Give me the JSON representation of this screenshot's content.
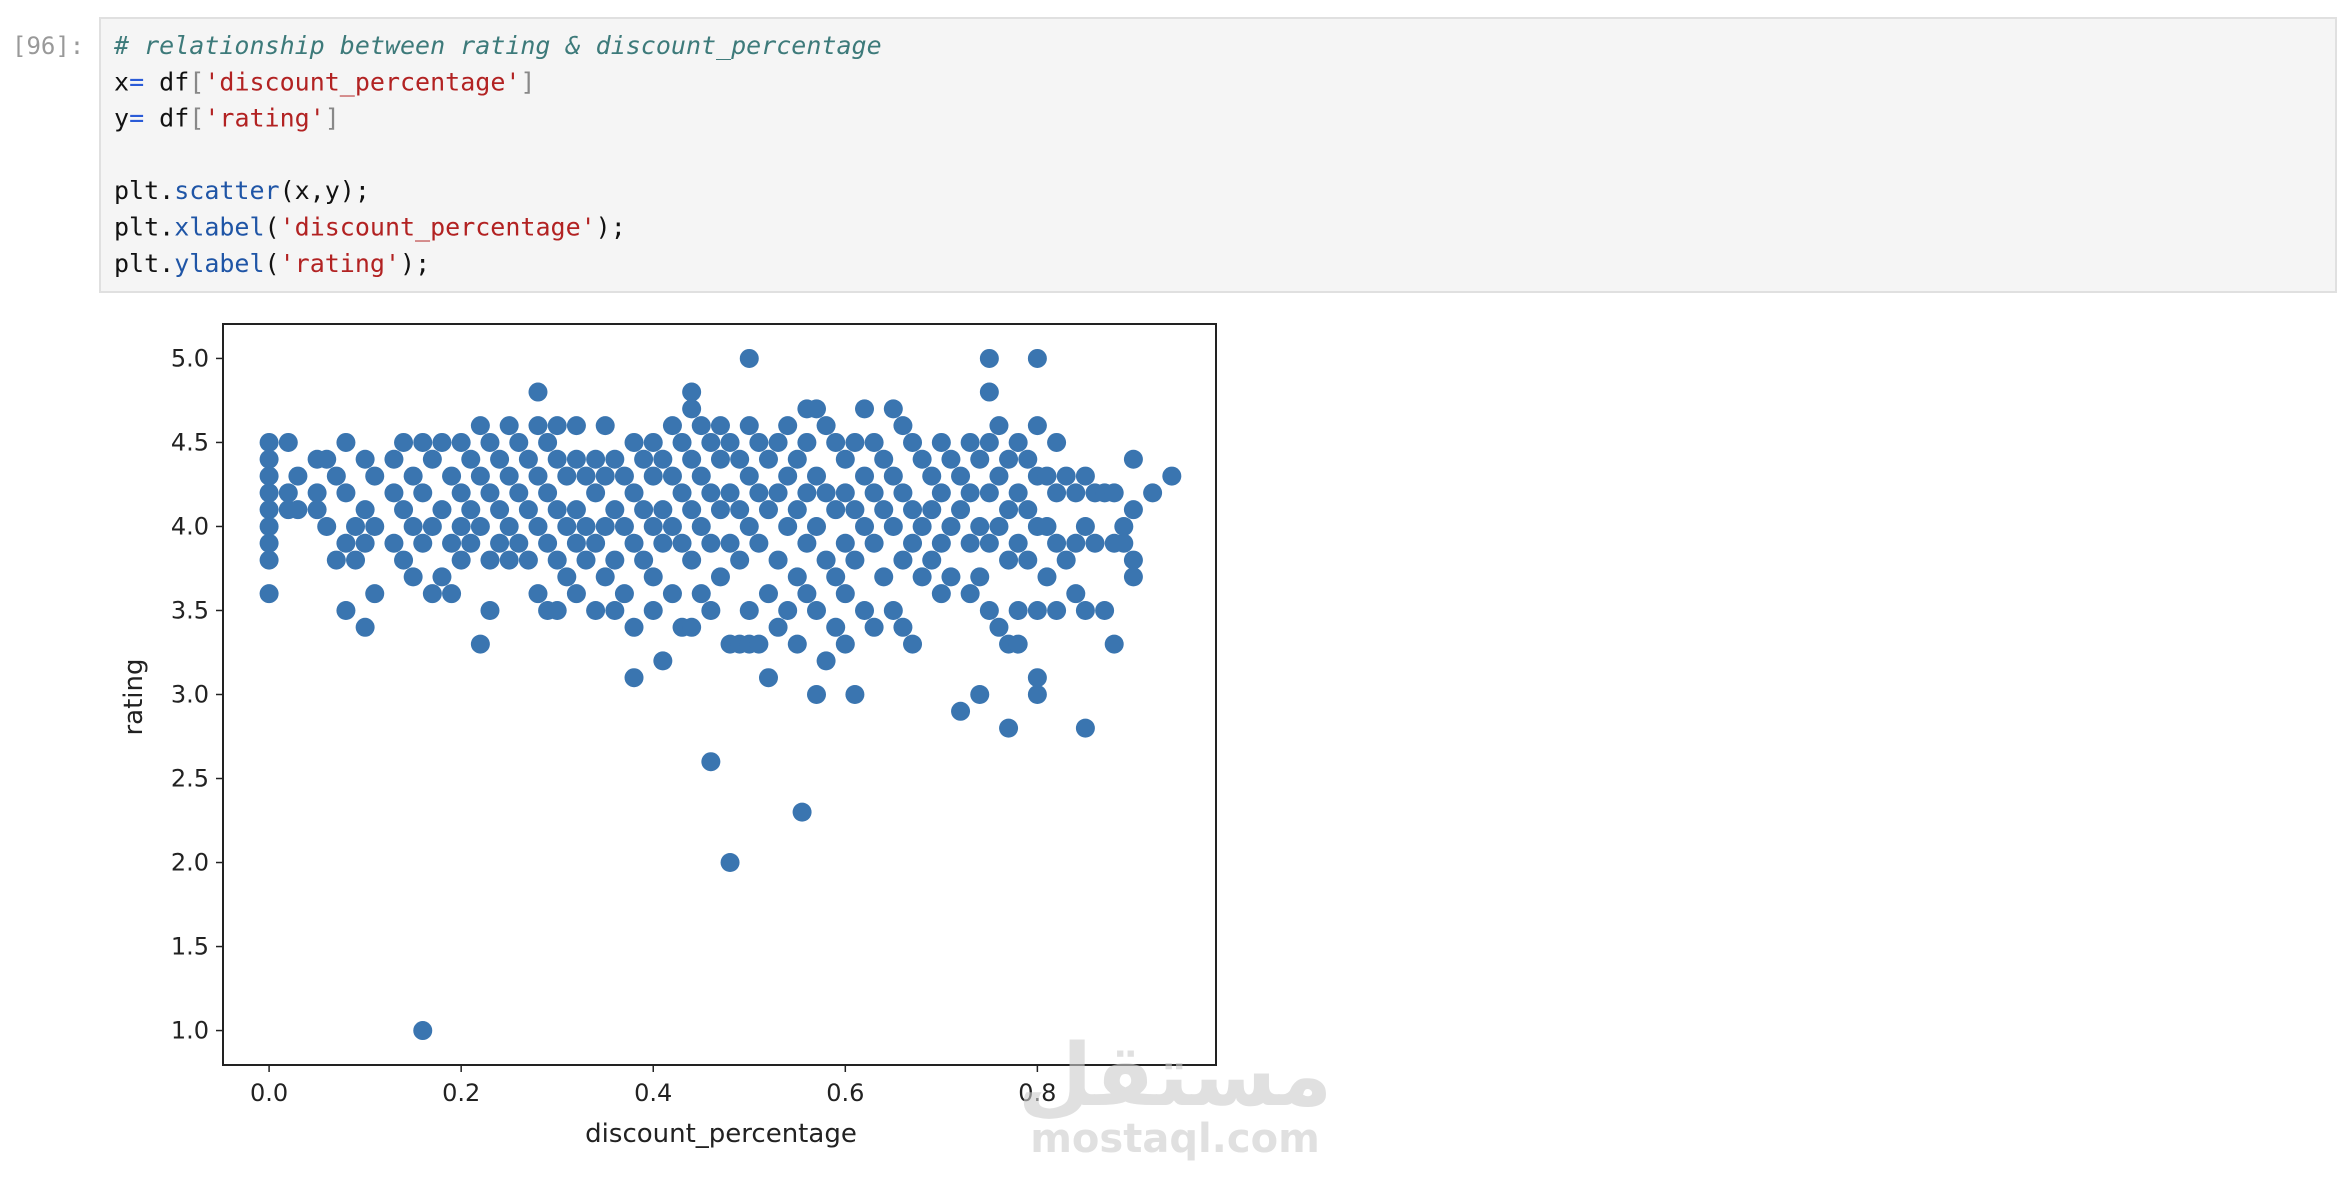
{
  "cell": {
    "prompt": "[96]:",
    "code": [
      [
        {
          "text": "# relationship between rating & discount_percentage",
          "style": "comment"
        }
      ],
      [
        {
          "text": "x",
          "style": "plain"
        },
        {
          "text": "=",
          "style": "op"
        },
        {
          "text": " df",
          "style": "plain"
        },
        {
          "text": "[",
          "style": "punct"
        },
        {
          "text": "'discount_percentage'",
          "style": "string"
        },
        {
          "text": "]",
          "style": "punct"
        }
      ],
      [
        {
          "text": "y",
          "style": "plain"
        },
        {
          "text": "=",
          "style": "op"
        },
        {
          "text": " df",
          "style": "plain"
        },
        {
          "text": "[",
          "style": "punct"
        },
        {
          "text": "'rating'",
          "style": "string"
        },
        {
          "text": "]",
          "style": "punct"
        }
      ],
      [],
      [
        {
          "text": "plt.",
          "style": "plain"
        },
        {
          "text": "scatter",
          "style": "func"
        },
        {
          "text": "(x,y);",
          "style": "plain"
        }
      ],
      [
        {
          "text": "plt.",
          "style": "plain"
        },
        {
          "text": "xlabel",
          "style": "func"
        },
        {
          "text": "(",
          "style": "plain"
        },
        {
          "text": "'discount_percentage'",
          "style": "string"
        },
        {
          "text": ");",
          "style": "plain"
        }
      ],
      [
        {
          "text": "plt.",
          "style": "plain"
        },
        {
          "text": "ylabel",
          "style": "func"
        },
        {
          "text": "(",
          "style": "plain"
        },
        {
          "text": "'rating'",
          "style": "string"
        },
        {
          "text": ");",
          "style": "plain"
        }
      ]
    ]
  },
  "chart_data": {
    "type": "scatter",
    "xlabel": "discount_percentage",
    "ylabel": "rating",
    "color": "#3a75b0",
    "xlim": [
      -0.048,
      0.986
    ],
    "ylim": [
      0.795,
      5.205
    ],
    "xticks": [
      {
        "value": 0,
        "label": "0.0"
      },
      0.2,
      0.4,
      0.6,
      0.8
    ],
    "yticks": [
      {
        "value": 1,
        "label": "1.0"
      },
      1.5,
      {
        "value": 2,
        "label": "2.0"
      },
      2.5,
      {
        "value": 3,
        "label": "3.0"
      },
      3.5,
      {
        "value": 4,
        "label": "4.0"
      },
      4.5,
      {
        "value": 5,
        "label": "5.0"
      }
    ],
    "x": [
      0,
      0,
      0,
      0,
      0,
      0,
      0,
      0,
      0,
      0.02,
      0.02,
      0.02,
      0.03,
      0.03,
      0.05,
      0.05,
      0.05,
      0.06,
      0.06,
      0.07,
      0.07,
      0.08,
      0.08,
      0.08,
      0.08,
      0.09,
      0.09,
      0.1,
      0.1,
      0.1,
      0.1,
      0.11,
      0.11,
      0.11,
      0.13,
      0.13,
      0.13,
      0.14,
      0.14,
      0.14,
      0.15,
      0.15,
      0.15,
      0.16,
      0.16,
      0.16,
      0.16,
      0.17,
      0.17,
      0.17,
      0.18,
      0.18,
      0.18,
      0.19,
      0.19,
      0.19,
      0.2,
      0.2,
      0.2,
      0.2,
      0.21,
      0.21,
      0.21,
      0.22,
      0.22,
      0.22,
      0.22,
      0.23,
      0.23,
      0.23,
      0.23,
      0.24,
      0.24,
      0.24,
      0.25,
      0.25,
      0.25,
      0.25,
      0.26,
      0.26,
      0.26,
      0.27,
      0.27,
      0.27,
      0.28,
      0.28,
      0.28,
      0.28,
      0.28,
      0.29,
      0.29,
      0.29,
      0.29,
      0.3,
      0.3,
      0.3,
      0.3,
      0.3,
      0.31,
      0.31,
      0.31,
      0.32,
      0.32,
      0.32,
      0.32,
      0.32,
      0.33,
      0.33,
      0.33,
      0.34,
      0.34,
      0.34,
      0.34,
      0.35,
      0.35,
      0.35,
      0.35,
      0.36,
      0.36,
      0.36,
      0.36,
      0.37,
      0.37,
      0.37,
      0.38,
      0.38,
      0.38,
      0.38,
      0.38,
      0.39,
      0.39,
      0.39,
      0.4,
      0.4,
      0.4,
      0.4,
      0.4,
      0.41,
      0.41,
      0.41,
      0.41,
      0.42,
      0.42,
      0.42,
      0.42,
      0.43,
      0.43,
      0.43,
      0.43,
      0.44,
      0.44,
      0.44,
      0.44,
      0.44,
      0.44,
      0.45,
      0.45,
      0.45,
      0.45,
      0.46,
      0.46,
      0.46,
      0.46,
      0.46,
      0.47,
      0.47,
      0.47,
      0.47,
      0.48,
      0.48,
      0.48,
      0.48,
      0.48,
      0.49,
      0.49,
      0.49,
      0.49,
      0.5,
      0.5,
      0.5,
      0.5,
      0.5,
      0.5,
      0.51,
      0.51,
      0.51,
      0.51,
      0.52,
      0.52,
      0.52,
      0.52,
      0.53,
      0.53,
      0.53,
      0.53,
      0.54,
      0.54,
      0.54,
      0.54,
      0.55,
      0.55,
      0.55,
      0.55,
      0.555,
      0.56,
      0.56,
      0.56,
      0.56,
      0.56,
      0.57,
      0.57,
      0.57,
      0.57,
      0.57,
      0.58,
      0.58,
      0.58,
      0.58,
      0.59,
      0.59,
      0.59,
      0.59,
      0.6,
      0.6,
      0.6,
      0.6,
      0.6,
      0.61,
      0.61,
      0.61,
      0.61,
      0.62,
      0.62,
      0.62,
      0.62,
      0.63,
      0.63,
      0.63,
      0.63,
      0.64,
      0.64,
      0.64,
      0.65,
      0.65,
      0.65,
      0.65,
      0.66,
      0.66,
      0.66,
      0.66,
      0.67,
      0.67,
      0.67,
      0.67,
      0.68,
      0.68,
      0.68,
      0.69,
      0.69,
      0.69,
      0.7,
      0.7,
      0.7,
      0.7,
      0.71,
      0.71,
      0.71,
      0.72,
      0.72,
      0.72,
      0.73,
      0.73,
      0.73,
      0.73,
      0.74,
      0.74,
      0.74,
      0.74,
      0.75,
      0.75,
      0.75,
      0.75,
      0.75,
      0.75,
      0.76,
      0.76,
      0.76,
      0.76,
      0.77,
      0.77,
      0.77,
      0.77,
      0.77,
      0.78,
      0.78,
      0.78,
      0.78,
      0.78,
      0.79,
      0.79,
      0.79,
      0.8,
      0.8,
      0.8,
      0.8,
      0.8,
      0.8,
      0.8,
      0.81,
      0.81,
      0.81,
      0.82,
      0.82,
      0.82,
      0.82,
      0.83,
      0.83,
      0.84,
      0.84,
      0.84,
      0.85,
      0.85,
      0.85,
      0.85,
      0.86,
      0.86,
      0.87,
      0.87,
      0.88,
      0.88,
      0.88,
      0.89,
      0.89,
      0.9,
      0.9,
      0.9,
      0.9,
      0.92,
      0.94
    ],
    "values": [
      4.5,
      4.4,
      4.3,
      4.2,
      4.1,
      4.0,
      3.9,
      3.8,
      3.6,
      4.5,
      4.2,
      4.1,
      4.3,
      4.1,
      4.4,
      4.2,
      4.1,
      4.4,
      4.0,
      4.3,
      3.8,
      4.5,
      4.2,
      3.9,
      3.5,
      3.8,
      4.0,
      4.4,
      4.1,
      3.9,
      3.4,
      4.3,
      4.0,
      3.6,
      4.4,
      4.2,
      3.9,
      4.5,
      4.1,
      3.8,
      4.3,
      4.0,
      3.7,
      4.5,
      4.2,
      3.9,
      1.0,
      4.4,
      4.0,
      3.6,
      4.5,
      4.1,
      3.7,
      4.3,
      3.9,
      3.6,
      4.5,
      4.2,
      4.0,
      3.8,
      4.4,
      4.1,
      3.9,
      4.6,
      4.3,
      4.0,
      3.3,
      4.5,
      4.2,
      3.8,
      3.5,
      4.4,
      4.1,
      3.9,
      4.6,
      4.3,
      4.0,
      3.8,
      4.5,
      4.2,
      3.9,
      4.4,
      4.1,
      3.8,
      4.8,
      4.6,
      4.3,
      4.0,
      3.6,
      4.5,
      4.2,
      3.9,
      3.5,
      4.6,
      4.4,
      4.1,
      3.8,
      3.5,
      4.3,
      4.0,
      3.7,
      4.6,
      4.4,
      4.1,
      3.9,
      3.6,
      4.3,
      4.0,
      3.8,
      4.4,
      4.2,
      3.9,
      3.5,
      4.6,
      4.3,
      4.0,
      3.7,
      4.4,
      4.1,
      3.8,
      3.5,
      4.3,
      4.0,
      3.6,
      4.5,
      4.2,
      3.9,
      3.4,
      3.1,
      4.4,
      4.1,
      3.8,
      4.5,
      4.3,
      4.0,
      3.7,
      3.5,
      4.4,
      4.1,
      3.9,
      3.2,
      4.6,
      4.3,
      4.0,
      3.6,
      4.5,
      4.2,
      3.9,
      3.4,
      4.8,
      4.7,
      4.4,
      4.1,
      3.8,
      3.4,
      4.6,
      4.3,
      4.0,
      3.6,
      4.5,
      4.2,
      3.9,
      3.5,
      2.6,
      4.6,
      4.4,
      4.1,
      3.7,
      4.5,
      4.2,
      3.9,
      3.3,
      2.0,
      4.4,
      4.1,
      3.8,
      3.3,
      5.0,
      4.6,
      4.3,
      4.0,
      3.5,
      3.3,
      4.5,
      4.2,
      3.9,
      3.3,
      4.4,
      4.1,
      3.6,
      3.1,
      4.5,
      4.2,
      3.8,
      3.4,
      4.6,
      4.3,
      4.0,
      3.5,
      4.4,
      4.1,
      3.7,
      3.3,
      2.3,
      4.7,
      4.5,
      4.2,
      3.9,
      3.6,
      4.7,
      4.3,
      4.0,
      3.5,
      3.0,
      4.6,
      4.2,
      3.8,
      3.2,
      4.5,
      4.1,
      3.7,
      3.4,
      4.4,
      4.2,
      3.9,
      3.6,
      3.3,
      4.5,
      4.1,
      3.8,
      3.0,
      4.7,
      4.3,
      4.0,
      3.5,
      4.5,
      4.2,
      3.9,
      3.4,
      4.4,
      4.1,
      3.7,
      4.7,
      4.3,
      4.0,
      3.5,
      4.6,
      4.2,
      3.8,
      3.4,
      4.5,
      4.1,
      3.9,
      3.3,
      4.4,
      4.0,
      3.7,
      4.3,
      4.1,
      3.8,
      4.5,
      4.2,
      3.9,
      3.6,
      4.4,
      4.0,
      3.7,
      4.3,
      4.1,
      2.9,
      4.5,
      4.2,
      3.9,
      3.6,
      4.4,
      4.0,
      3.7,
      3.0,
      5.0,
      4.8,
      4.5,
      4.2,
      3.9,
      3.5,
      4.6,
      4.3,
      4.0,
      3.4,
      4.4,
      4.1,
      3.8,
      3.3,
      2.8,
      4.5,
      4.2,
      3.9,
      3.5,
      3.3,
      4.4,
      4.1,
      3.8,
      5.0,
      4.6,
      4.3,
      4.0,
      3.5,
      3.1,
      3.0,
      4.3,
      4.0,
      3.7,
      4.5,
      4.2,
      3.9,
      3.5,
      4.3,
      3.8,
      4.2,
      3.9,
      3.6,
      4.3,
      4.0,
      3.5,
      2.8,
      4.2,
      3.9,
      4.2,
      3.5,
      4.2,
      3.9,
      3.3,
      4.0,
      3.9,
      4.4,
      4.1,
      3.8,
      3.7,
      4.2,
      4.3
    ]
  },
  "watermark": {
    "logo": "مستقل",
    "site": "mostaql.com"
  }
}
